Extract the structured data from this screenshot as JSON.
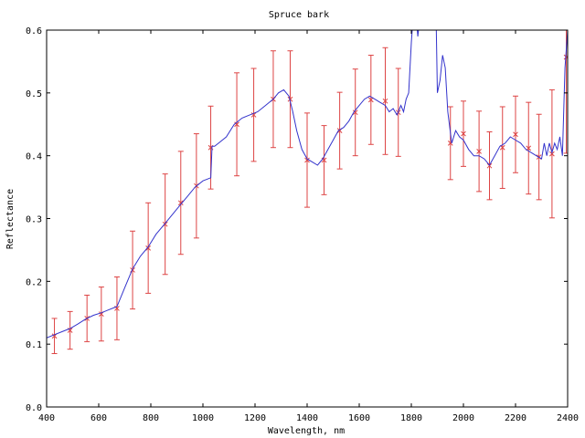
{
  "chart_data": {
    "type": "line",
    "title": "Spruce bark",
    "xlabel": "Wavelength, nm",
    "ylabel": "Reflectance",
    "xlim": [
      400,
      2400
    ],
    "ylim": [
      0.0,
      0.6
    ],
    "x_ticks": [
      400,
      600,
      800,
      1000,
      1200,
      1400,
      1600,
      1800,
      2000,
      2200,
      2400
    ],
    "x_tick_labels": [
      "400",
      "600",
      "800",
      "1000",
      "1200",
      "1400",
      "1600",
      "1800",
      "2000",
      "2200",
      "2400"
    ],
    "y_ticks": [
      0.0,
      0.1,
      0.2,
      0.3,
      0.4,
      0.5,
      0.6
    ],
    "y_tick_labels": [
      "0.0",
      "0.1",
      "0.2",
      "0.3",
      "0.4",
      "0.5",
      "0.6"
    ],
    "grid": false,
    "legend": "none",
    "colors": {
      "line": "#3333cc",
      "errorbar": "#dd4444",
      "axes": "#000000"
    },
    "series": [
      {
        "style": "line",
        "x": [
          400,
          430,
          460,
          490,
          520,
          550,
          580,
          610,
          640,
          670,
          700,
          730,
          760,
          790,
          820,
          850,
          880,
          910,
          940,
          970,
          1000,
          1030,
          1035,
          1045,
          1060,
          1090,
          1120,
          1150,
          1180,
          1210,
          1240,
          1270,
          1290,
          1310,
          1330,
          1345,
          1360,
          1380,
          1400,
          1420,
          1440,
          1460,
          1480,
          1500,
          1520,
          1540,
          1560,
          1580,
          1600,
          1620,
          1640,
          1660,
          1680,
          1700,
          1715,
          1730,
          1745,
          1760,
          1770,
          1780,
          1790,
          1800,
          1805,
          1815,
          1825,
          1835,
          1845,
          1855,
          1865,
          1875,
          1885,
          1895,
          1900,
          1910,
          1920,
          1930,
          1940,
          1955,
          1970,
          1985,
          2000,
          2020,
          2040,
          2060,
          2080,
          2100,
          2120,
          2140,
          2160,
          2180,
          2200,
          2220,
          2240,
          2260,
          2280,
          2300,
          2310,
          2320,
          2330,
          2340,
          2350,
          2360,
          2370,
          2380,
          2390,
          2400
        ],
        "y": [
          0.11,
          0.115,
          0.12,
          0.125,
          0.132,
          0.14,
          0.146,
          0.15,
          0.155,
          0.16,
          0.19,
          0.22,
          0.24,
          0.255,
          0.275,
          0.29,
          0.305,
          0.32,
          0.335,
          0.35,
          0.36,
          0.365,
          0.415,
          0.415,
          0.42,
          0.43,
          0.45,
          0.46,
          0.465,
          0.47,
          0.48,
          0.49,
          0.5,
          0.505,
          0.495,
          0.47,
          0.44,
          0.41,
          0.395,
          0.39,
          0.385,
          0.395,
          0.41,
          0.425,
          0.44,
          0.445,
          0.455,
          0.47,
          0.48,
          0.49,
          0.495,
          0.49,
          0.485,
          0.48,
          0.47,
          0.475,
          0.465,
          0.48,
          0.47,
          0.49,
          0.5,
          0.58,
          0.61,
          0.64,
          0.59,
          0.63,
          0.66,
          0.62,
          0.68,
          0.63,
          0.7,
          0.62,
          0.5,
          0.52,
          0.56,
          0.54,
          0.47,
          0.42,
          0.44,
          0.43,
          0.425,
          0.41,
          0.4,
          0.4,
          0.395,
          0.385,
          0.4,
          0.415,
          0.42,
          0.43,
          0.425,
          0.42,
          0.41,
          0.405,
          0.4,
          0.395,
          0.42,
          0.4,
          0.42,
          0.405,
          0.42,
          0.41,
          0.43,
          0.4,
          0.54,
          0.6
        ]
      },
      {
        "style": "errorbar",
        "x": [
          430,
          490,
          555,
          610,
          670,
          730,
          790,
          855,
          915,
          975,
          1030,
          1130,
          1195,
          1270,
          1335,
          1400,
          1465,
          1525,
          1585,
          1645,
          1700,
          1750,
          1950,
          2000,
          2060,
          2100,
          2150,
          2200,
          2250,
          2290,
          2340,
          2395
        ],
        "y": [
          0.113,
          0.122,
          0.141,
          0.148,
          0.157,
          0.218,
          0.253,
          0.291,
          0.325,
          0.352,
          0.413,
          0.45,
          0.465,
          0.49,
          0.49,
          0.393,
          0.393,
          0.44,
          0.469,
          0.489,
          0.487,
          0.469,
          0.42,
          0.435,
          0.407,
          0.384,
          0.413,
          0.434,
          0.412,
          0.398,
          0.403,
          0.557
        ],
        "yerr": [
          0.028,
          0.03,
          0.037,
          0.043,
          0.05,
          0.062,
          0.072,
          0.08,
          0.082,
          0.083,
          0.066,
          0.082,
          0.074,
          0.077,
          0.077,
          0.075,
          0.055,
          0.061,
          0.069,
          0.071,
          0.085,
          0.07,
          0.058,
          0.052,
          0.064,
          0.054,
          0.065,
          0.061,
          0.073,
          0.068,
          0.102,
          0.153
        ]
      }
    ]
  }
}
